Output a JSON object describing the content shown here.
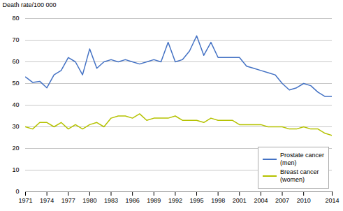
{
  "chart_data": {
    "type": "line",
    "y_label": "Death rate/100 000",
    "x": [
      1971,
      1972,
      1973,
      1974,
      1975,
      1976,
      1977,
      1978,
      1979,
      1980,
      1981,
      1982,
      1983,
      1984,
      1985,
      1986,
      1987,
      1988,
      1989,
      1990,
      1991,
      1992,
      1993,
      1994,
      1995,
      1996,
      1997,
      1998,
      1999,
      2000,
      2001,
      2002,
      2003,
      2004,
      2005,
      2006,
      2007,
      2008,
      2009,
      2010,
      2011,
      2012,
      2013,
      2014
    ],
    "series": [
      {
        "name": "Prostate cancer\n(men)",
        "color": "#4472c4",
        "values": [
          53,
          50.5,
          51,
          48,
          54,
          56,
          62,
          60,
          54,
          66,
          57,
          60,
          61,
          60,
          61,
          60,
          59,
          60,
          61,
          60,
          69,
          60,
          61,
          65,
          72,
          63,
          69,
          62,
          62,
          62,
          62,
          58,
          57,
          56,
          55,
          54,
          50,
          47,
          48,
          50,
          49,
          46,
          44,
          44
        ]
      },
      {
        "name": "Breast cancer\n(women)",
        "color": "#b5c200",
        "values": [
          30,
          29,
          32,
          32,
          30,
          32,
          29,
          31,
          29,
          31,
          32,
          30,
          34,
          35,
          35,
          34,
          36,
          33,
          34,
          34,
          34,
          35,
          33,
          33,
          33,
          32,
          34,
          33,
          33,
          33,
          31,
          31,
          31,
          31,
          30,
          30,
          30,
          29,
          29,
          30,
          29,
          29,
          27,
          26
        ]
      }
    ],
    "xlim": [
      1971,
      2014
    ],
    "xticks": [
      1971,
      1974,
      1977,
      1980,
      1983,
      1986,
      1989,
      1992,
      1995,
      1998,
      2001,
      2004,
      2007,
      2010,
      2014
    ],
    "ylim": [
      0,
      80
    ],
    "yticks": [
      0,
      10,
      20,
      30,
      40,
      50,
      60,
      70,
      80
    ],
    "grid": true,
    "legend": "lower right"
  }
}
